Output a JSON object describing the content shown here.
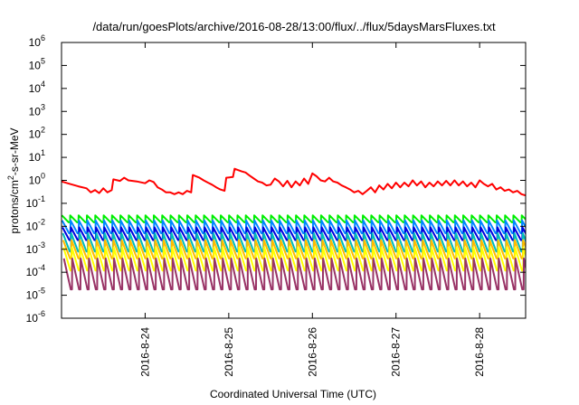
{
  "chart_data": {
    "type": "line",
    "title": "/data/run/goesPlots/archive/2016-08-28/13:00/flux/../flux/5daysMarsFluxes.txt",
    "xlabel": "Coordinated Universal Time (UTC)",
    "ylabel_parts": {
      "base": "protons/cm",
      "sup": "2",
      "rest": "-s-sr-MeV"
    },
    "x_ticks": [
      {
        "label": "2016-8-24",
        "day": 24
      },
      {
        "label": "2016-8-25",
        "day": 25
      },
      {
        "label": "2016-8-26",
        "day": 26
      },
      {
        "label": "2016-8-27",
        "day": 27
      },
      {
        "label": "2016-8-28",
        "day": 28
      }
    ],
    "xlim_days": [
      23.0,
      28.55
    ],
    "y_scale": "log",
    "ylim": [
      1e-06,
      1000000.0
    ],
    "y_ticks": [
      {
        "base": "10",
        "exp": "-6",
        "value": -6
      },
      {
        "base": "10",
        "exp": "-5",
        "value": -5
      },
      {
        "base": "10",
        "exp": "-4",
        "value": -4
      },
      {
        "base": "10",
        "exp": "-3",
        "value": -3
      },
      {
        "base": "10",
        "exp": "-2",
        "value": -2
      },
      {
        "base": "10",
        "exp": "-1",
        "value": -1
      },
      {
        "base": "10",
        "exp": "0",
        "value": 0
      },
      {
        "base": "10",
        "exp": "1",
        "value": 1
      },
      {
        "base": "10",
        "exp": "2",
        "value": 2
      },
      {
        "base": "10",
        "exp": "3",
        "value": 3
      },
      {
        "base": "10",
        "exp": "4",
        "value": 4
      },
      {
        "base": "10",
        "exp": "5",
        "value": 5
      },
      {
        "base": "10",
        "exp": "6",
        "value": 6
      }
    ],
    "grid": false,
    "sawtooth_period_days": 0.1,
    "series": [
      {
        "color": "#ff0000",
        "points": [
          [
            23.0,
            0.9
          ],
          [
            23.1,
            0.7
          ],
          [
            23.2,
            0.55
          ],
          [
            23.3,
            0.45
          ],
          [
            23.35,
            0.3
          ],
          [
            23.4,
            0.38
          ],
          [
            23.45,
            0.28
          ],
          [
            23.5,
            0.45
          ],
          [
            23.55,
            0.3
          ],
          [
            23.6,
            0.38
          ],
          [
            23.62,
            1.1
          ],
          [
            23.7,
            0.95
          ],
          [
            23.75,
            1.3
          ],
          [
            23.8,
            1.0
          ],
          [
            23.9,
            0.9
          ],
          [
            24.0,
            0.75
          ],
          [
            24.05,
            1.0
          ],
          [
            24.1,
            0.85
          ],
          [
            24.15,
            0.5
          ],
          [
            24.2,
            0.4
          ],
          [
            24.25,
            0.3
          ],
          [
            24.3,
            0.3
          ],
          [
            24.35,
            0.25
          ],
          [
            24.4,
            0.3
          ],
          [
            24.45,
            0.25
          ],
          [
            24.5,
            0.35
          ],
          [
            24.55,
            0.3
          ],
          [
            24.57,
            1.7
          ],
          [
            24.65,
            1.3
          ],
          [
            24.7,
            1.0
          ],
          [
            24.75,
            0.8
          ],
          [
            24.8,
            0.65
          ],
          [
            24.85,
            0.5
          ],
          [
            24.9,
            0.4
          ],
          [
            24.95,
            0.35
          ],
          [
            24.97,
            1.3
          ],
          [
            25.05,
            1.4
          ],
          [
            25.07,
            3.2
          ],
          [
            25.15,
            2.5
          ],
          [
            25.2,
            2.2
          ],
          [
            25.25,
            1.6
          ],
          [
            25.3,
            1.2
          ],
          [
            25.35,
            0.9
          ],
          [
            25.4,
            0.8
          ],
          [
            25.45,
            0.6
          ],
          [
            25.5,
            0.65
          ],
          [
            25.55,
            1.2
          ],
          [
            25.6,
            0.9
          ],
          [
            25.65,
            0.55
          ],
          [
            25.7,
            0.95
          ],
          [
            25.75,
            0.5
          ],
          [
            25.8,
            0.9
          ],
          [
            25.85,
            0.6
          ],
          [
            25.9,
            1.2
          ],
          [
            25.95,
            0.7
          ],
          [
            26.0,
            2.0
          ],
          [
            26.05,
            1.5
          ],
          [
            26.1,
            1.0
          ],
          [
            26.15,
            0.9
          ],
          [
            26.2,
            1.3
          ],
          [
            26.25,
            0.9
          ],
          [
            26.3,
            0.8
          ],
          [
            26.35,
            0.6
          ],
          [
            26.4,
            0.5
          ],
          [
            26.45,
            0.4
          ],
          [
            26.5,
            0.3
          ],
          [
            26.55,
            0.35
          ],
          [
            26.6,
            0.25
          ],
          [
            26.65,
            0.35
          ],
          [
            26.7,
            0.5
          ],
          [
            26.75,
            0.3
          ],
          [
            26.8,
            0.6
          ],
          [
            26.85,
            0.4
          ],
          [
            26.9,
            0.7
          ],
          [
            26.95,
            0.45
          ],
          [
            27.0,
            0.8
          ],
          [
            27.05,
            0.5
          ],
          [
            27.1,
            0.8
          ],
          [
            27.15,
            0.55
          ],
          [
            27.2,
            1.0
          ],
          [
            27.25,
            0.6
          ],
          [
            27.3,
            0.9
          ],
          [
            27.35,
            0.5
          ],
          [
            27.4,
            0.8
          ],
          [
            27.45,
            0.55
          ],
          [
            27.5,
            0.9
          ],
          [
            27.55,
            0.6
          ],
          [
            27.6,
            0.95
          ],
          [
            27.65,
            0.6
          ],
          [
            27.7,
            1.0
          ],
          [
            27.75,
            0.6
          ],
          [
            27.8,
            0.9
          ],
          [
            27.85,
            0.55
          ],
          [
            27.9,
            0.8
          ],
          [
            27.95,
            0.5
          ],
          [
            28.0,
            1.0
          ],
          [
            28.05,
            0.7
          ],
          [
            28.1,
            0.55
          ],
          [
            28.15,
            0.7
          ],
          [
            28.2,
            0.4
          ],
          [
            28.25,
            0.5
          ],
          [
            28.3,
            0.35
          ],
          [
            28.35,
            0.4
          ],
          [
            28.4,
            0.3
          ],
          [
            28.45,
            0.35
          ],
          [
            28.5,
            0.25
          ],
          [
            28.55,
            0.22
          ]
        ]
      },
      {
        "color": "#00ee00",
        "peak": 0.03,
        "trough": 0.015
      },
      {
        "color": "#0088ff",
        "peak": 0.018,
        "trough": 0.005
      },
      {
        "color": "#0000dd",
        "peak": 0.009,
        "trough": 0.0025
      },
      {
        "color": "#00bbbb",
        "peak": 0.005,
        "trough": 0.0008
      },
      {
        "color": "#ffbb00",
        "peak": 0.0025,
        "trough": 0.0004
      },
      {
        "color": "#ffff00",
        "peak": 0.0012,
        "trough": 0.00012
      },
      {
        "color": "#993366",
        "peak": 0.0004,
        "trough": 1.8e-05
      }
    ]
  }
}
